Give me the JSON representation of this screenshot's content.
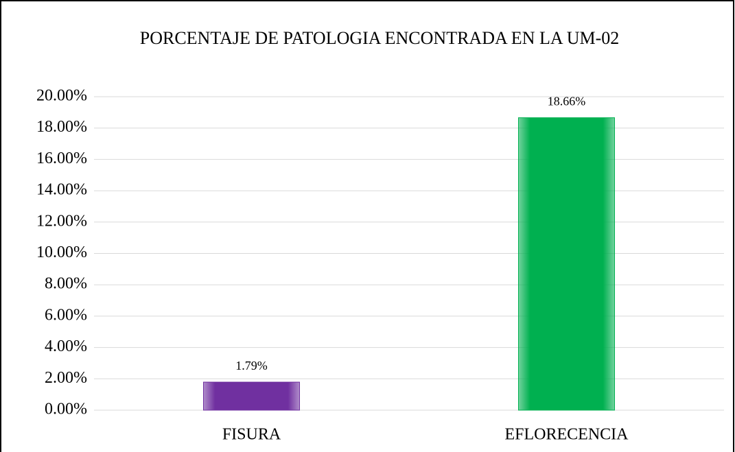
{
  "chart_data": {
    "type": "bar",
    "title": "PORCENTAJE DE PATOLOGIA ENCONTRADA EN LA UM-02",
    "categories": [
      "FISURA",
      "EFLORECENCIA"
    ],
    "values": [
      1.79,
      18.66
    ],
    "value_labels": [
      "1.79%",
      "18.66%"
    ],
    "colors": [
      "#7030a0",
      "#00b050"
    ],
    "ylim": [
      0,
      20
    ],
    "yticks": [
      {
        "value": 0,
        "label": "0.00%"
      },
      {
        "value": 2,
        "label": "2.00%"
      },
      {
        "value": 4,
        "label": "4.00%"
      },
      {
        "value": 6,
        "label": "6.00%"
      },
      {
        "value": 8,
        "label": "8.00%"
      },
      {
        "value": 10,
        "label": "10.00%"
      },
      {
        "value": 12,
        "label": "12.00%"
      },
      {
        "value": 14,
        "label": "14.00%"
      },
      {
        "value": 16,
        "label": "16.00%"
      },
      {
        "value": 18,
        "label": "18.00%"
      },
      {
        "value": 20,
        "label": "20.00%"
      }
    ],
    "grid": true
  }
}
